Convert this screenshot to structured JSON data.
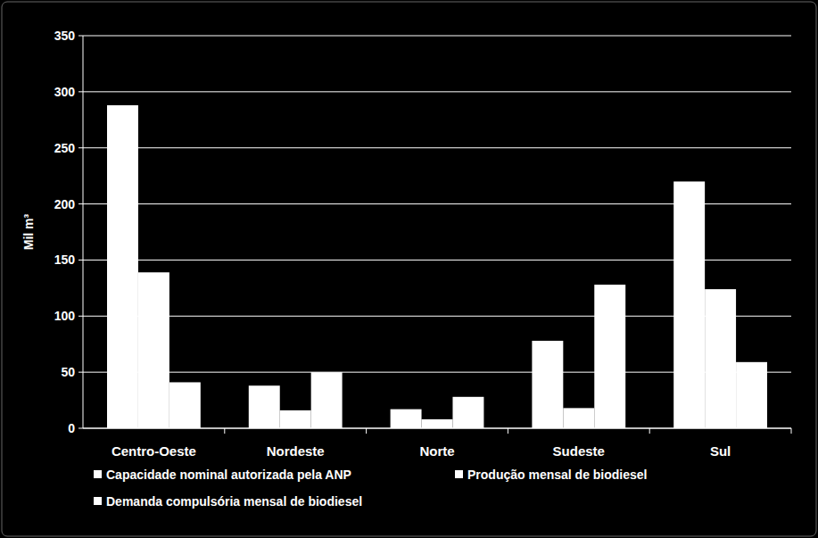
{
  "chart_data": {
    "type": "bar",
    "y_label": "Mil m³",
    "categories": [
      "Centro-Oeste",
      "Nordeste",
      "Norte",
      "Sudeste",
      "Sul"
    ],
    "series": [
      {
        "name": "Capacidade nominal autorizada pela ANP",
        "color": "#ffffff",
        "values": [
          288,
          38,
          17,
          78,
          220
        ]
      },
      {
        "name": "Produção mensal de biodiesel",
        "color": "#ffffff",
        "values": [
          139,
          16,
          8,
          18,
          124
        ]
      },
      {
        "name": "Demanda compulsória mensal de biodiesel",
        "color": "#ffffff",
        "values": [
          41,
          50,
          28,
          128,
          59
        ]
      }
    ],
    "ylim": [
      0,
      350
    ],
    "yticks": [
      0,
      50,
      100,
      150,
      200,
      250,
      300,
      350
    ],
    "grid": true,
    "legend": "bottom"
  }
}
